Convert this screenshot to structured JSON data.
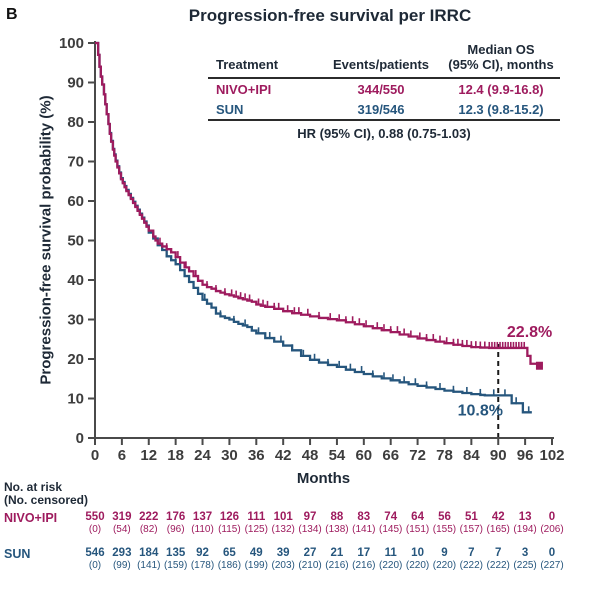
{
  "panel_label": "B",
  "title": "Progression-free survival per IRRC",
  "colors": {
    "nivo_ipi": "#9e1b5e",
    "sun": "#26567d",
    "text_dark": "#1e2936",
    "axis": "#4a4a4a",
    "tick_label": "#3d3d3d",
    "dashed_line": "#1a1a1a"
  },
  "inset_table": {
    "col1_header": "Treatment",
    "col2_header": "Events/patients",
    "col3_header_line1": "Median OS",
    "col3_header_line2": "(95% CI), months",
    "rows": [
      {
        "treatment": "NIVO+IPI",
        "events_patients": "344/550",
        "median_os": "12.4 (9.9-16.8)"
      },
      {
        "treatment": "SUN",
        "events_patients": "319/546",
        "median_os": "12.3 (9.8-15.2)"
      }
    ],
    "footer": "HR (95% CI), 0.88 (0.75-1.03)"
  },
  "chart_data": {
    "type": "line",
    "subtype": "kaplan-meier-step",
    "title": "Progression-free survival per IRRC",
    "xlabel": "Months",
    "ylabel": "Progression-free survival probability (%)",
    "xlim": [
      0,
      102
    ],
    "ylim": [
      0,
      100
    ],
    "x_ticks": [
      0,
      6,
      12,
      18,
      24,
      30,
      36,
      42,
      48,
      54,
      60,
      66,
      72,
      78,
      84,
      90,
      96,
      102
    ],
    "y_ticks": [
      0,
      10,
      20,
      30,
      40,
      50,
      60,
      70,
      80,
      90,
      100
    ],
    "grid": false,
    "dashed_line_x": 90,
    "series": [
      {
        "name": "NIVO+IPI",
        "color": "#9e1b5e",
        "end_marker": "square",
        "points": [
          [
            0,
            100
          ],
          [
            0.7,
            97
          ],
          [
            1,
            94
          ],
          [
            1.3,
            91.5
          ],
          [
            1.6,
            89.5
          ],
          [
            2,
            87
          ],
          [
            2.3,
            84.5
          ],
          [
            2.6,
            82
          ],
          [
            3,
            79.5
          ],
          [
            3.3,
            77
          ],
          [
            3.6,
            75
          ],
          [
            4,
            73
          ],
          [
            4.3,
            71.5
          ],
          [
            4.6,
            70
          ],
          [
            5,
            68.5
          ],
          [
            5.4,
            67
          ],
          [
            5.8,
            65.5
          ],
          [
            6.2,
            64.5
          ],
          [
            6.6,
            63.5
          ],
          [
            7,
            62.5
          ],
          [
            7.5,
            61.5
          ],
          [
            8,
            60.5
          ],
          [
            8.5,
            59.5
          ],
          [
            9,
            58.5
          ],
          [
            9.5,
            57.5
          ],
          [
            10,
            56.5
          ],
          [
            10.5,
            55.5
          ],
          [
            11,
            54.5
          ],
          [
            11.5,
            53.5
          ],
          [
            12,
            52.5
          ],
          [
            13,
            51
          ],
          [
            13.5,
            50
          ],
          [
            14,
            49.2
          ],
          [
            15,
            48.5
          ],
          [
            16,
            47.8
          ],
          [
            17,
            47
          ],
          [
            18,
            45.8
          ],
          [
            19,
            44.4
          ],
          [
            20,
            43.2
          ],
          [
            21,
            42.2
          ],
          [
            22,
            41
          ],
          [
            23,
            39.8
          ],
          [
            24,
            38.8
          ],
          [
            25,
            38.2
          ],
          [
            26,
            37.8
          ],
          [
            27,
            37.2
          ],
          [
            28,
            36.8
          ],
          [
            29,
            36.4
          ],
          [
            30,
            36.1
          ],
          [
            31,
            35.8
          ],
          [
            32,
            35.4
          ],
          [
            33,
            35.1
          ],
          [
            34,
            34.8
          ],
          [
            35,
            34.5
          ],
          [
            36,
            33.8
          ],
          [
            37,
            33.5
          ],
          [
            38,
            33.2
          ],
          [
            40,
            32.7
          ],
          [
            42,
            32.1
          ],
          [
            44,
            31.6
          ],
          [
            46,
            31.2
          ],
          [
            48,
            30.8
          ],
          [
            50,
            30.4
          ],
          [
            52,
            30.1
          ],
          [
            54,
            29.8
          ],
          [
            56,
            29.3
          ],
          [
            58,
            28.8
          ],
          [
            60,
            28.3
          ],
          [
            62,
            27.8
          ],
          [
            64,
            27.3
          ],
          [
            66,
            26.8
          ],
          [
            68,
            26.2
          ],
          [
            70,
            25.7
          ],
          [
            72,
            25.2
          ],
          [
            74,
            24.8
          ],
          [
            76,
            24.4
          ],
          [
            78,
            24
          ],
          [
            80,
            23.6
          ],
          [
            82,
            23.3
          ],
          [
            84,
            23
          ],
          [
            86,
            22.9
          ],
          [
            88,
            22.8
          ],
          [
            96.5,
            20.8
          ],
          [
            97.2,
            18.8
          ],
          [
            99.2,
            18.8
          ]
        ],
        "censor_ticks": [
          14.5,
          16,
          18.5,
          20.3,
          22.5,
          25,
          27,
          29,
          30.5,
          31.5,
          32.5,
          33.5,
          34.5,
          36.5,
          37.5,
          38.5,
          40,
          41,
          43,
          44.5,
          45.5,
          47.5,
          50,
          52.5,
          54.5,
          56,
          57.5,
          59,
          60.5,
          63,
          64.5,
          66,
          67.5,
          69,
          70.5,
          72.5,
          74,
          75.5,
          77,
          78.5,
          80,
          81,
          82,
          83,
          84,
          85,
          86,
          87,
          88,
          88.6,
          89.2,
          89.8,
          90.4,
          91,
          91.6,
          92.2,
          92.8,
          93.4,
          94,
          94.6,
          95.2,
          95.8
        ],
        "landmark_label": "22.8%"
      },
      {
        "name": "SUN",
        "color": "#26567d",
        "end_marker": null,
        "points": [
          [
            0,
            100
          ],
          [
            0.7,
            97
          ],
          [
            1,
            94
          ],
          [
            1.3,
            91.5
          ],
          [
            1.6,
            89.5
          ],
          [
            2,
            87
          ],
          [
            2.3,
            84.5
          ],
          [
            2.6,
            82
          ],
          [
            3,
            79.5
          ],
          [
            3.3,
            77.2
          ],
          [
            3.6,
            75.2
          ],
          [
            4,
            73.2
          ],
          [
            4.3,
            71.8
          ],
          [
            4.6,
            70.2
          ],
          [
            5,
            68.8
          ],
          [
            5.4,
            67.2
          ],
          [
            5.8,
            65.8
          ],
          [
            6.2,
            64.8
          ],
          [
            6.6,
            63.8
          ],
          [
            7,
            62.8
          ],
          [
            7.5,
            61.8
          ],
          [
            8,
            60.8
          ],
          [
            8.5,
            59.8
          ],
          [
            9,
            58.8
          ],
          [
            9.5,
            57.8
          ],
          [
            10,
            56.8
          ],
          [
            10.5,
            55.8
          ],
          [
            11,
            54.8
          ],
          [
            11.5,
            53.8
          ],
          [
            12,
            52
          ],
          [
            13,
            50.5
          ],
          [
            14,
            48.8
          ],
          [
            15,
            47.6
          ],
          [
            16,
            46
          ],
          [
            17,
            45
          ],
          [
            18,
            44
          ],
          [
            19,
            42.5
          ],
          [
            20,
            41
          ],
          [
            21,
            39.5
          ],
          [
            22,
            38
          ],
          [
            23,
            36.5
          ],
          [
            24,
            35
          ],
          [
            25,
            34
          ],
          [
            26,
            33
          ],
          [
            27,
            31.5
          ],
          [
            28,
            30.8
          ],
          [
            29,
            30.4
          ],
          [
            30,
            30
          ],
          [
            31,
            29.4
          ],
          [
            32,
            28.9
          ],
          [
            33,
            28.5
          ],
          [
            34,
            28.1
          ],
          [
            35,
            27.2
          ],
          [
            36,
            26.5
          ],
          [
            38,
            25.3
          ],
          [
            40,
            24.4
          ],
          [
            42,
            23.4
          ],
          [
            44,
            22.2
          ],
          [
            46,
            20.8
          ],
          [
            48,
            19.8
          ],
          [
            50,
            19.1
          ],
          [
            52,
            18.5
          ],
          [
            54,
            18
          ],
          [
            56,
            17.3
          ],
          [
            58,
            16.7
          ],
          [
            60,
            16.2
          ],
          [
            62,
            15.6
          ],
          [
            64,
            15.1
          ],
          [
            66,
            14.6
          ],
          [
            68,
            14.1
          ],
          [
            70,
            13.6
          ],
          [
            72,
            13.2
          ],
          [
            74,
            12.8
          ],
          [
            76,
            12.4
          ],
          [
            78,
            12
          ],
          [
            80,
            11.7
          ],
          [
            82,
            11.4
          ],
          [
            84,
            11.1
          ],
          [
            86,
            10.9
          ],
          [
            87,
            10.8
          ],
          [
            93,
            8.8
          ],
          [
            95.5,
            6.5
          ],
          [
            97.5,
            6.5
          ]
        ],
        "censor_ticks": [
          15,
          18,
          21,
          24.5,
          28,
          31,
          33.5,
          36.5,
          39,
          41.5,
          44,
          46.5,
          49,
          52,
          54.5,
          57,
          59.5,
          62,
          64.5,
          66.5,
          69,
          71.5,
          74,
          77,
          80,
          83,
          86,
          89,
          91.5,
          94,
          96.8
        ],
        "landmark_label": "10.8%"
      }
    ],
    "annotations": [
      {
        "text": "22.8%",
        "month": 97,
        "pct": 26.8,
        "color": "#9e1b5e"
      },
      {
        "text": "10.8%",
        "month": 86,
        "pct": 7.0,
        "color": "#26567d"
      }
    ]
  },
  "risk_table": {
    "title_line1": "No. at risk",
    "title_line2": "(No. censored)",
    "rows": [
      {
        "label": "NIVO+IPI",
        "color": "#9e1b5e",
        "at_risk": [
          550,
          319,
          222,
          176,
          137,
          126,
          111,
          101,
          97,
          88,
          83,
          74,
          64,
          56,
          51,
          42,
          13,
          0
        ],
        "censored": [
          "(0)",
          "(54)",
          "(82)",
          "(96)",
          "(110)",
          "(115)",
          "(125)",
          "(132)",
          "(134)",
          "(138)",
          "(141)",
          "(145)",
          "(151)",
          "(155)",
          "(157)",
          "(165)",
          "(194)",
          "(206)"
        ]
      },
      {
        "label": "SUN",
        "color": "#26567d",
        "at_risk": [
          546,
          293,
          184,
          135,
          92,
          65,
          49,
          39,
          27,
          21,
          17,
          11,
          10,
          9,
          7,
          7,
          3,
          0
        ],
        "censored": [
          "(0)",
          "(99)",
          "(141)",
          "(159)",
          "(178)",
          "(186)",
          "(199)",
          "(203)",
          "(210)",
          "(216)",
          "(216)",
          "(220)",
          "(220)",
          "(220)",
          "(222)",
          "(222)",
          "(225)",
          "(227)"
        ]
      }
    ]
  }
}
